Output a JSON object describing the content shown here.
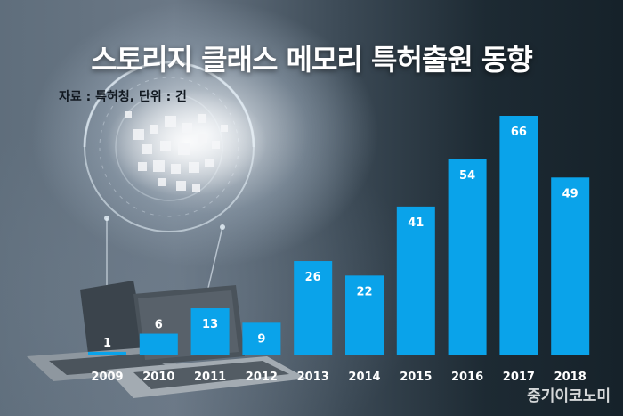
{
  "header": {
    "title": "스토리지 클래스 메모리 특허출원 동향",
    "source": "자료 : 특허청, 단위 : 건"
  },
  "watermark": "중기이코노미",
  "colors": {
    "bar": "#0aa3ea",
    "label": "#ffffff",
    "background": "#2a3640"
  },
  "chart_data": {
    "type": "bar",
    "title": "스토리지 클래스 메모리 특허출원 동향",
    "xlabel": "",
    "ylabel": "",
    "categories": [
      "2009",
      "2010",
      "2011",
      "2012",
      "2013",
      "2014",
      "2015",
      "2016",
      "2017",
      "2018"
    ],
    "values": [
      1,
      6,
      13,
      9,
      26,
      22,
      41,
      54,
      66,
      49
    ],
    "ylim": [
      0,
      66
    ],
    "grid": false,
    "legend": "none"
  }
}
